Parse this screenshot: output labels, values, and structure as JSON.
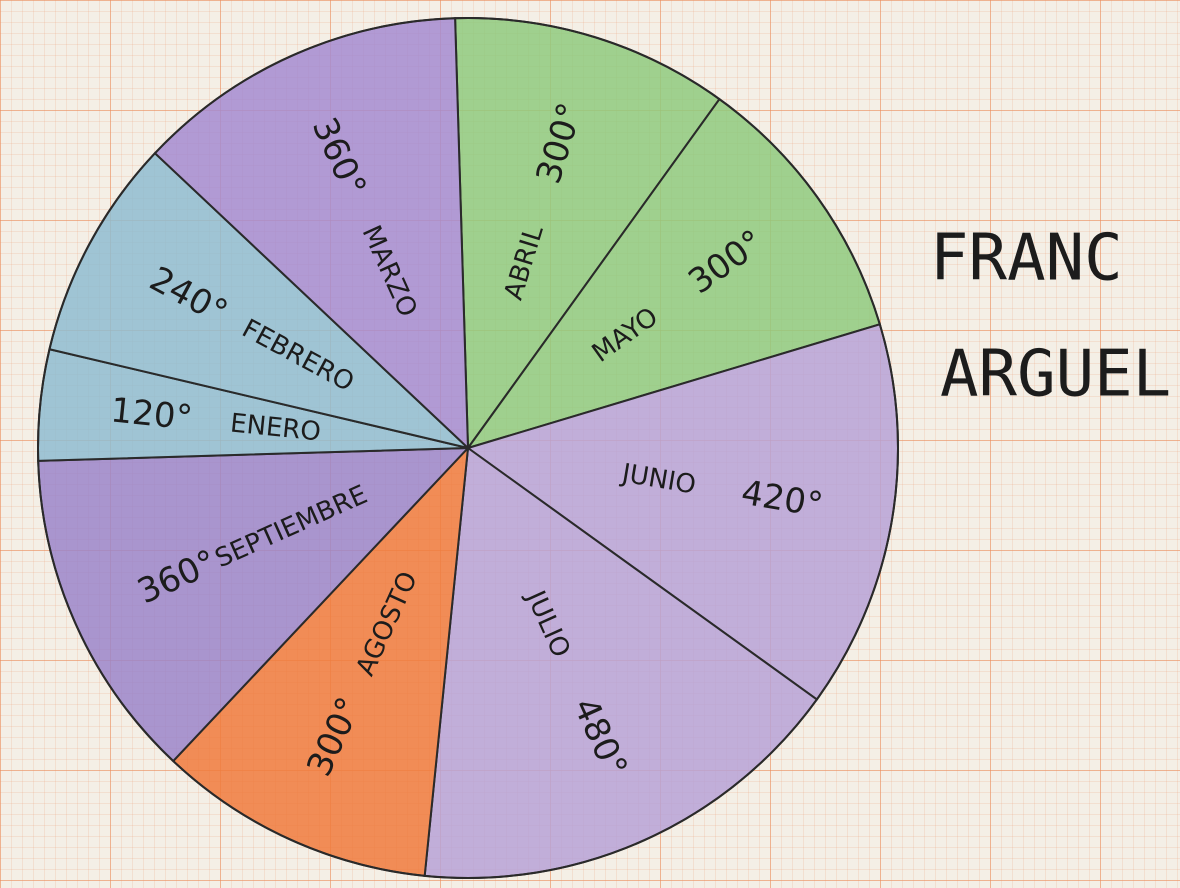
{
  "chart_data": {
    "type": "pie",
    "categories": [
      "ABRIL",
      "MAYO",
      "JUNIO",
      "JULIO",
      "AGOSTO",
      "SEPTIEMBRE",
      "ENERO",
      "FEBRERO",
      "MARZO"
    ],
    "values": [
      300,
      300,
      420,
      480,
      300,
      360,
      120,
      240,
      360
    ],
    "value_labels": [
      "300°",
      "300°",
      "420°",
      "480°",
      "300°",
      "360°",
      "120°",
      "240°",
      "360°"
    ],
    "colors": [
      "#8fca7e",
      "#8fca7e",
      "#b7a2d6",
      "#b7a2d6",
      "#f07a3c",
      "#9b85c9",
      "#8fbcd0",
      "#8fbcd0",
      "#a58bd0"
    ],
    "annotations": [
      "FRANC",
      "ARGUEL"
    ]
  }
}
